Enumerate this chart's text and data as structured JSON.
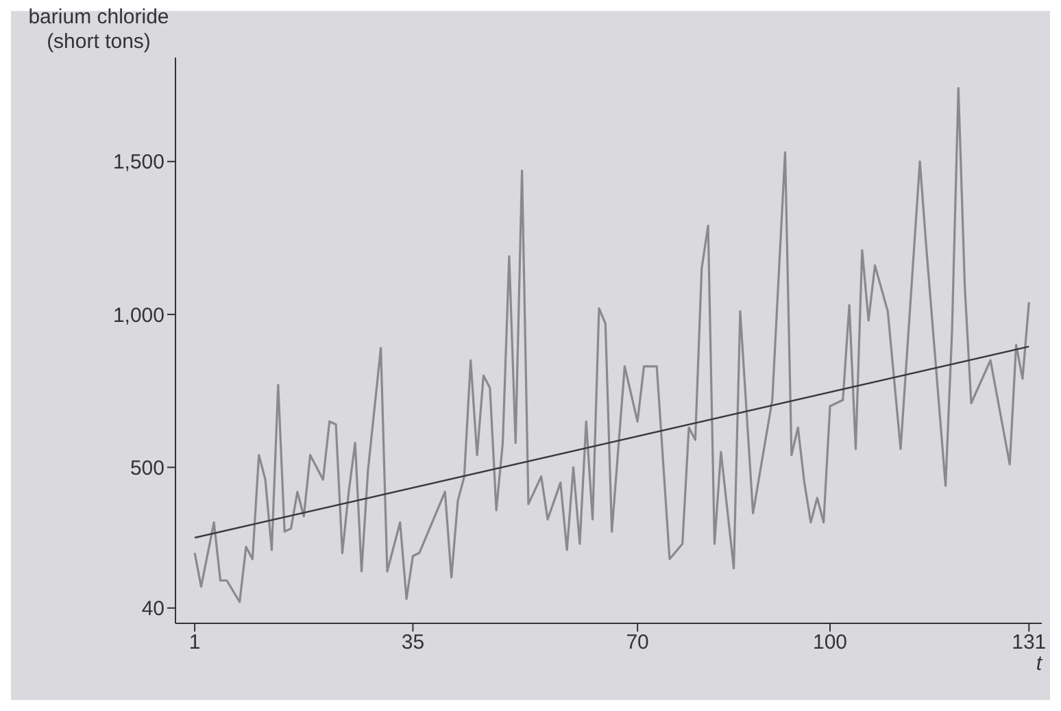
{
  "chart_data": {
    "type": "line",
    "ylabel": "barium chloride (short tons)",
    "xlabel": "t",
    "xlim": [
      -2,
      133
    ],
    "xticks": [
      1,
      35,
      70,
      100,
      131
    ],
    "ylim": [
      -10,
      1840
    ],
    "yticks": [
      40,
      500,
      {
        "value": 1000,
        "label": "1,000"
      },
      {
        "value": 1500,
        "label": "1,500"
      }
    ],
    "marker": "none",
    "line_style": "solid",
    "series": [
      {
        "color": "#8a8a8a",
        "x": [
          1,
          2,
          4,
          5,
          6,
          8,
          9,
          10,
          11,
          12,
          13,
          14,
          15,
          16,
          17,
          18,
          19,
          21,
          22,
          23,
          24,
          25,
          26,
          27,
          28,
          30,
          31,
          33,
          34,
          35,
          36,
          40,
          41,
          42,
          43,
          44,
          45,
          46,
          47,
          48,
          49,
          50,
          51,
          52,
          53,
          55,
          56,
          58,
          59,
          60,
          61,
          62,
          63,
          64,
          65,
          66,
          68,
          70,
          71,
          73,
          75,
          77,
          78,
          79,
          80,
          81,
          82,
          83,
          85,
          86,
          88,
          91,
          93,
          94,
          95,
          96,
          97,
          98,
          99,
          100,
          102,
          103,
          104,
          105,
          106,
          107,
          109,
          111,
          114,
          115,
          118,
          119,
          120,
          121,
          122,
          125,
          128,
          129,
          130,
          131
        ],
        "values": [
          220,
          110,
          320,
          130,
          130,
          60,
          240,
          200,
          540,
          460,
          230,
          770,
          290,
          300,
          420,
          340,
          540,
          460,
          650,
          640,
          220,
          420,
          580,
          160,
          490,
          890,
          160,
          320,
          70,
          210,
          220,
          420,
          140,
          390,
          470,
          850,
          540,
          800,
          760,
          360,
          580,
          1190,
          580,
          1470,
          380,
          470,
          330,
          450,
          230,
          500,
          250,
          650,
          330,
          1020,
          970,
          290,
          830,
          650,
          830,
          830,
          200,
          250,
          630,
          590,
          1150,
          1290,
          250,
          550,
          170,
          1010,
          350,
          720,
          1530,
          540,
          630,
          450,
          320,
          400,
          320,
          700,
          720,
          1030,
          560,
          1210,
          980,
          1160,
          1010,
          560,
          1500,
          1220,
          440,
          940,
          1740,
          1090,
          710,
          850,
          510,
          900,
          790,
          1040
        ]
      },
      {
        "color": "#3a3a3a",
        "x": [
          1,
          131
        ],
        "values": [
          270,
          895
        ]
      }
    ]
  }
}
